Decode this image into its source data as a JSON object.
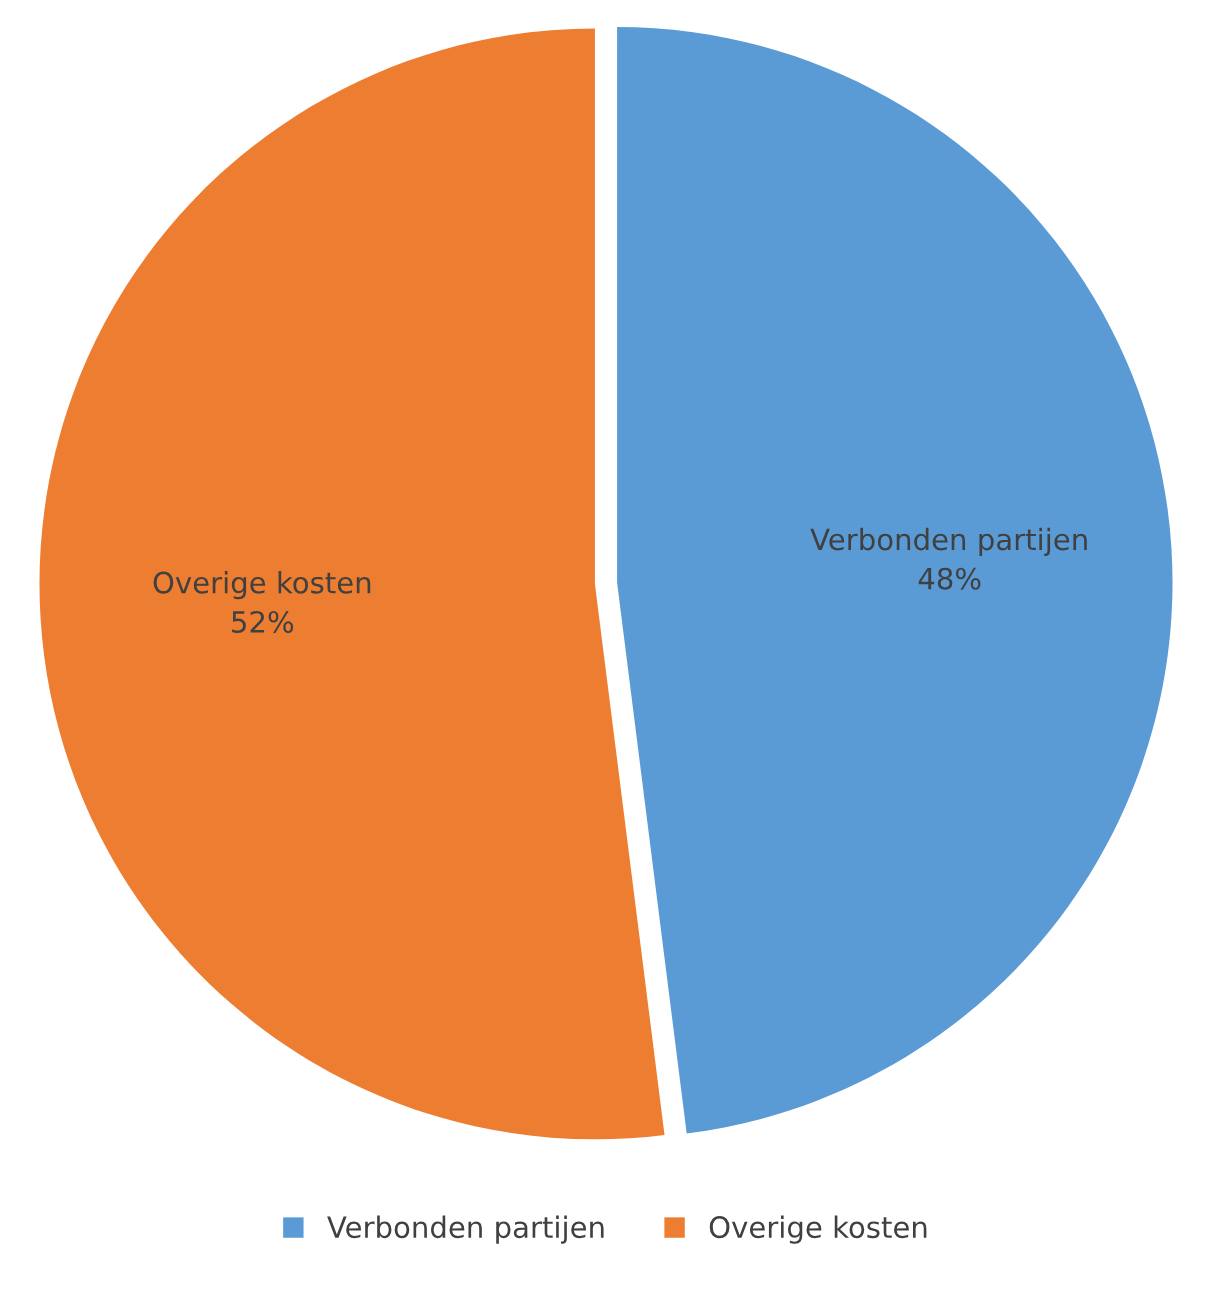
{
  "chart_data": {
    "type": "pie",
    "categories": [
      "Verbonden partijen",
      "Overige kosten"
    ],
    "values": [
      48,
      52
    ],
    "colors": [
      "#5b9bd5",
      "#ed7d31"
    ],
    "value_labels": [
      "48%",
      "52%"
    ],
    "legend": "bottom"
  }
}
